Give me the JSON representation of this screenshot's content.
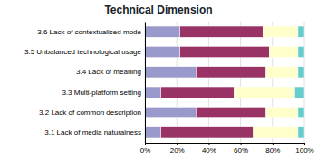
{
  "chart_data": {
    "type": "bar",
    "orientation": "horizontal",
    "stacked": true,
    "title": "Technical Dimension",
    "categories": [
      "3.6 Lack of contextualised mode",
      "3.5 Unbalanced technological usage",
      "3.4 Lack of meaning",
      "3.3 Multi-platform setting",
      "3.2 Lack of common description",
      "3.1 Lack of media naturalness"
    ],
    "series": [
      {
        "color": "#9999cc",
        "values": [
          22,
          22,
          32,
          10,
          32,
          10
        ]
      },
      {
        "color": "#993366",
        "values": [
          52,
          56,
          44,
          46,
          44,
          58
        ]
      },
      {
        "color": "#ffffcc",
        "values": [
          22,
          18,
          20,
          38,
          20,
          28
        ]
      },
      {
        "color": "#66cccc",
        "values": [
          4,
          4,
          4,
          6,
          4,
          4
        ]
      }
    ],
    "xlim": [
      0,
      100
    ],
    "xticks": [
      {
        "value": 0,
        "label": "0%"
      },
      {
        "value": 20,
        "label": "20%"
      },
      {
        "value": 40,
        "label": "40%"
      },
      {
        "value": 60,
        "label": "60%"
      },
      {
        "value": 80,
        "label": "80%"
      },
      {
        "value": 100,
        "label": "100%"
      }
    ],
    "grid": true
  }
}
